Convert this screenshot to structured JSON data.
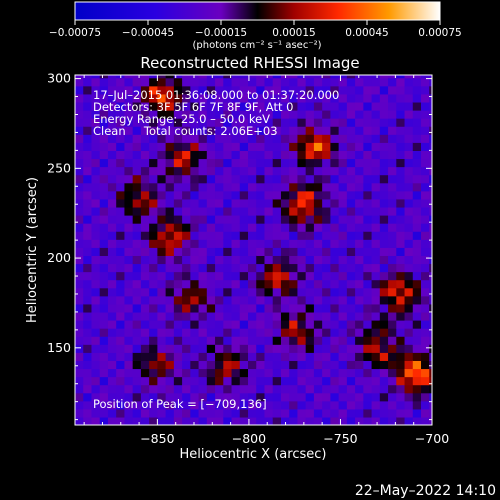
{
  "chart_data": {
    "type": "heatmap",
    "title": "Reconstructed RHESSI Image",
    "xlabel": "Heliocentric X (arcsec)",
    "ylabel": "Heliocentric Y (arcsec)",
    "xlim": [
      -895,
      -700
    ],
    "ylim": [
      107,
      302
    ],
    "x_ticks": [
      -850,
      -800,
      -750,
      -700
    ],
    "x_tick_labels": [
      "−850",
      "−800",
      "−750",
      "−700"
    ],
    "y_ticks": [
      150,
      200,
      250,
      300
    ],
    "y_tick_labels": [
      "150",
      "200",
      "250",
      "300"
    ],
    "colorbar": {
      "ticks": [
        -0.00075,
        -0.00045,
        -0.00015,
        0.00015,
        0.00045,
        0.00075
      ],
      "tick_labels": [
        "−0.00075",
        "−0.00045",
        "−0.00015",
        "0.00015",
        "0.00045",
        "0.00075"
      ],
      "unit": "(photons cm⁻² s⁻¹ asec⁻²)",
      "range": [
        -0.00075,
        0.00075
      ]
    },
    "info_lines": [
      "17–Jul–2015 01:36:08.000 to 01:37:20.000",
      "Detectors: 3F 5F 6F 7F 8F 9F, Att 0",
      "Energy Range: 25.0 – 50.0 keV",
      "Clean     Total counts: 2.06E+03"
    ],
    "peak_label": "Position of Peak = [−709,136]",
    "peak_position": [
      -709,
      136
    ],
    "hot_regions": [
      {
        "x": -843,
        "y": 212,
        "value": 0.00055
      },
      {
        "x": -836,
        "y": 255,
        "value": 0.0005
      },
      {
        "x": -847,
        "y": 290,
        "value": 0.0006
      },
      {
        "x": -860,
        "y": 235,
        "value": 0.00045
      },
      {
        "x": -770,
        "y": 230,
        "value": 0.00065
      },
      {
        "x": -764,
        "y": 263,
        "value": 0.0006
      },
      {
        "x": -784,
        "y": 190,
        "value": 0.0005
      },
      {
        "x": -774,
        "y": 160,
        "value": 0.00045
      },
      {
        "x": -850,
        "y": 140,
        "value": 0.0004
      },
      {
        "x": -812,
        "y": 140,
        "value": 0.00045
      },
      {
        "x": -832,
        "y": 178,
        "value": 0.0004
      },
      {
        "x": -709,
        "y": 136,
        "value": 0.00075
      },
      {
        "x": -718,
        "y": 180,
        "value": 0.0006
      },
      {
        "x": -730,
        "y": 152,
        "value": 0.0005
      }
    ]
  },
  "footer": {
    "timestamp": "22–May–2022 14:10"
  }
}
